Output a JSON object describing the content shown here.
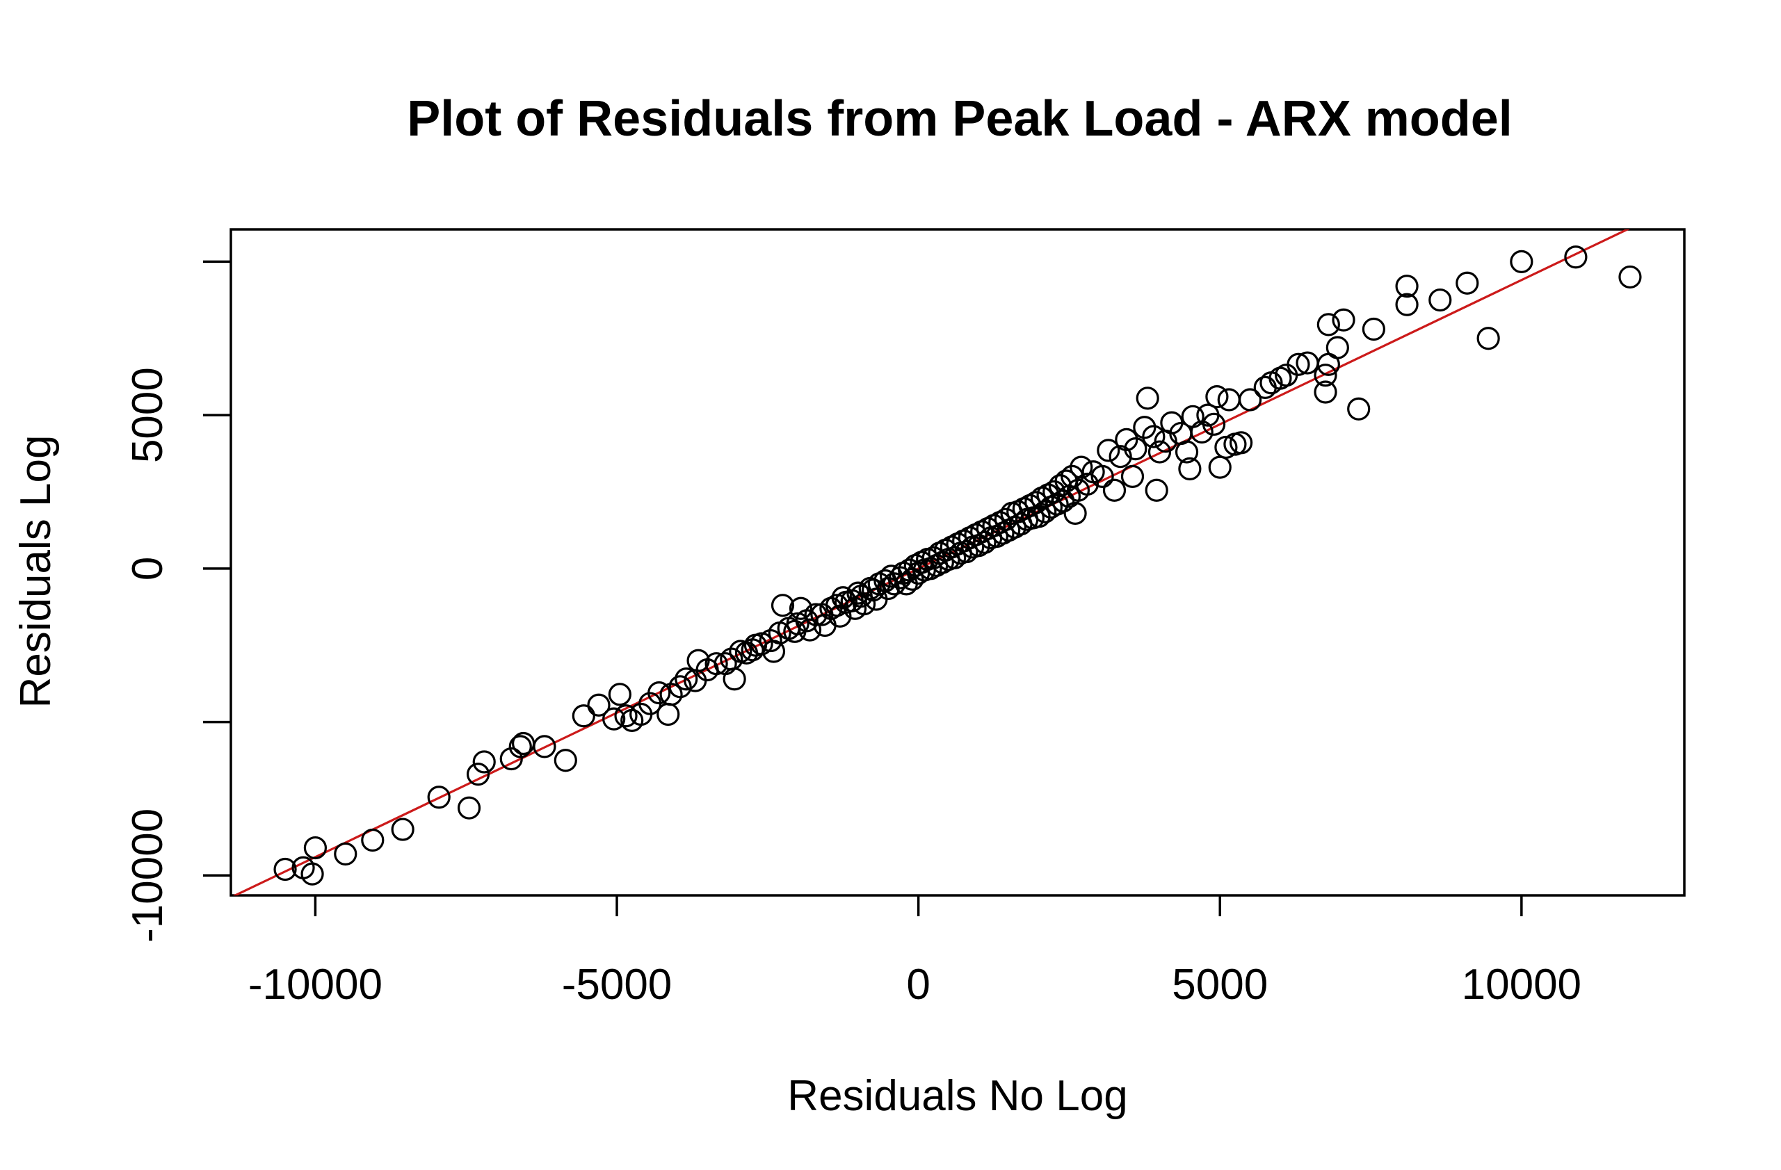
{
  "chart_data": {
    "type": "scatter",
    "title": "Plot of Residuals from Peak Load - ARX model",
    "xlabel": "Residuals No Log",
    "ylabel": "Residuals Log",
    "xlim": [
      -11400,
      12700
    ],
    "ylim": [
      -10650,
      11050
    ],
    "x_ticks": [
      -10000,
      -5000,
      0,
      5000,
      10000
    ],
    "x_tick_labels": [
      "-10000",
      "-5000",
      "0",
      "5000",
      "10000"
    ],
    "y_ticks": [
      -10000,
      -5000,
      0,
      5000,
      10000
    ],
    "y_tick_labels": [
      "-10000",
      "",
      "0",
      "5000",
      ""
    ],
    "grid": false,
    "legend": "none",
    "colors": {
      "points": "#000000",
      "fit_line": "#cc1a1a"
    },
    "fit_line": {
      "slope": 0.94,
      "intercept": 0
    },
    "points": [
      [
        -10500,
        -9800
      ],
      [
        -10200,
        -9750
      ],
      [
        -10050,
        -9950
      ],
      [
        -10000,
        -9100
      ],
      [
        -9500,
        -9300
      ],
      [
        -9050,
        -8850
      ],
      [
        -8550,
        -8500
      ],
      [
        -7950,
        -7450
      ],
      [
        -7450,
        -7800
      ],
      [
        -7300,
        -6700
      ],
      [
        -7200,
        -6300
      ],
      [
        -6750,
        -6200
      ],
      [
        -6600,
        -5800
      ],
      [
        -6550,
        -5700
      ],
      [
        -6200,
        -5800
      ],
      [
        -5850,
        -6250
      ],
      [
        -5550,
        -4800
      ],
      [
        -5300,
        -4450
      ],
      [
        -5050,
        -4900
      ],
      [
        -4950,
        -4100
      ],
      [
        -4850,
        -4800
      ],
      [
        -4750,
        -4950
      ],
      [
        -4600,
        -4750
      ],
      [
        -4450,
        -4400
      ],
      [
        -4300,
        -4050
      ],
      [
        -4150,
        -4750
      ],
      [
        -4100,
        -4100
      ],
      [
        -3950,
        -3850
      ],
      [
        -3850,
        -3600
      ],
      [
        -3700,
        -3650
      ],
      [
        -3650,
        -3000
      ],
      [
        -3500,
        -3300
      ],
      [
        -3350,
        -3100
      ],
      [
        -3200,
        -3100
      ],
      [
        -3100,
        -2950
      ],
      [
        -3050,
        -3600
      ],
      [
        -2950,
        -2700
      ],
      [
        -2850,
        -2750
      ],
      [
        -2750,
        -2650
      ],
      [
        -2700,
        -2500
      ],
      [
        -2600,
        -2450
      ],
      [
        -2450,
        -2350
      ],
      [
        -2400,
        -2700
      ],
      [
        -2300,
        -2100
      ],
      [
        -2250,
        -1200
      ],
      [
        -2150,
        -1950
      ],
      [
        -2050,
        -2050
      ],
      [
        -2000,
        -1800
      ],
      [
        -1950,
        -1300
      ],
      [
        -1850,
        -1700
      ],
      [
        -1800,
        -2000
      ],
      [
        -1700,
        -1500
      ],
      [
        -1600,
        -1500
      ],
      [
        -1550,
        -1850
      ],
      [
        -1450,
        -1300
      ],
      [
        -1350,
        -1200
      ],
      [
        -1300,
        -1550
      ],
      [
        -1250,
        -950
      ],
      [
        -1200,
        -1100
      ],
      [
        -1100,
        -1050
      ],
      [
        -1050,
        -1300
      ],
      [
        -1000,
        -800
      ],
      [
        -950,
        -900
      ],
      [
        -900,
        -1150
      ],
      [
        -800,
        -650
      ],
      [
        -750,
        -700
      ],
      [
        -700,
        -1000
      ],
      [
        -650,
        -500
      ],
      [
        -550,
        -400
      ],
      [
        -500,
        -650
      ],
      [
        -450,
        -250
      ],
      [
        -400,
        -500
      ],
      [
        -300,
        -300
      ],
      [
        -250,
        -150
      ],
      [
        -200,
        -500
      ],
      [
        -150,
        -50
      ],
      [
        -100,
        -350
      ],
      [
        -50,
        100
      ],
      [
        0,
        -150
      ],
      [
        50,
        200
      ],
      [
        100,
        -50
      ],
      [
        150,
        300
      ],
      [
        200,
        0
      ],
      [
        250,
        350
      ],
      [
        300,
        100
      ],
      [
        350,
        500
      ],
      [
        400,
        200
      ],
      [
        450,
        600
      ],
      [
        500,
        300
      ],
      [
        550,
        700
      ],
      [
        600,
        350
      ],
      [
        650,
        800
      ],
      [
        700,
        500
      ],
      [
        750,
        900
      ],
      [
        800,
        550
      ],
      [
        850,
        1000
      ],
      [
        900,
        700
      ],
      [
        950,
        1100
      ],
      [
        1000,
        750
      ],
      [
        1050,
        1200
      ],
      [
        1100,
        850
      ],
      [
        1150,
        1300
      ],
      [
        1200,
        1000
      ],
      [
        1250,
        1400
      ],
      [
        1300,
        1050
      ],
      [
        1350,
        1500
      ],
      [
        1400,
        1150
      ],
      [
        1450,
        1600
      ],
      [
        1500,
        1250
      ],
      [
        1550,
        1800
      ],
      [
        1600,
        1350
      ],
      [
        1650,
        1850
      ],
      [
        1700,
        1450
      ],
      [
        1750,
        1950
      ],
      [
        1800,
        1600
      ],
      [
        1850,
        2050
      ],
      [
        1900,
        1650
      ],
      [
        1950,
        2150
      ],
      [
        2000,
        1700
      ],
      [
        2050,
        2300
      ],
      [
        2100,
        1850
      ],
      [
        2150,
        2400
      ],
      [
        2200,
        2000
      ],
      [
        2250,
        2500
      ],
      [
        2300,
        2100
      ],
      [
        2350,
        2700
      ],
      [
        2400,
        2200
      ],
      [
        2450,
        2850
      ],
      [
        2500,
        2350
      ],
      [
        2550,
        3000
      ],
      [
        2600,
        1800
      ],
      [
        2650,
        2550
      ],
      [
        2700,
        3300
      ],
      [
        2800,
        2750
      ],
      [
        2900,
        3150
      ],
      [
        3050,
        3000
      ],
      [
        3150,
        3850
      ],
      [
        3250,
        2550
      ],
      [
        3350,
        3650
      ],
      [
        3450,
        4200
      ],
      [
        3550,
        3000
      ],
      [
        3600,
        3900
      ],
      [
        3750,
        4600
      ],
      [
        3800,
        5550
      ],
      [
        3900,
        4300
      ],
      [
        3950,
        2550
      ],
      [
        4000,
        3800
      ],
      [
        4100,
        4150
      ],
      [
        4200,
        4750
      ],
      [
        4350,
        4400
      ],
      [
        4450,
        3800
      ],
      [
        4500,
        3250
      ],
      [
        4550,
        4950
      ],
      [
        4700,
        4450
      ],
      [
        4800,
        5000
      ],
      [
        4900,
        4700
      ],
      [
        4950,
        5600
      ],
      [
        5000,
        3300
      ],
      [
        5100,
        3950
      ],
      [
        5150,
        5500
      ],
      [
        5250,
        4050
      ],
      [
        5350,
        4100
      ],
      [
        5500,
        5500
      ],
      [
        5750,
        5900
      ],
      [
        5850,
        6050
      ],
      [
        6000,
        6200
      ],
      [
        6100,
        6300
      ],
      [
        6300,
        6650
      ],
      [
        6450,
        6700
      ],
      [
        6750,
        5750
      ],
      [
        6750,
        6300
      ],
      [
        6800,
        6650
      ],
      [
        6800,
        7950
      ],
      [
        6950,
        7200
      ],
      [
        7050,
        8100
      ],
      [
        7300,
        5200
      ],
      [
        7550,
        7800
      ],
      [
        8100,
        8600
      ],
      [
        8100,
        9200
      ],
      [
        8650,
        8750
      ],
      [
        9100,
        9300
      ],
      [
        9450,
        7500
      ],
      [
        10000,
        10000
      ],
      [
        10900,
        10150
      ],
      [
        11800,
        9500
      ]
    ]
  }
}
